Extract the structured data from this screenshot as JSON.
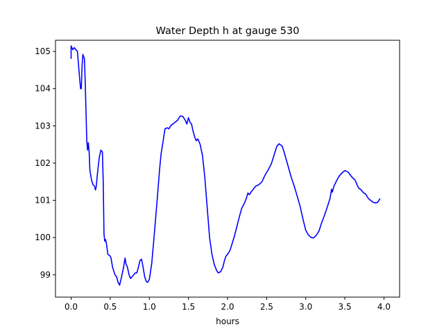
{
  "chart_data": {
    "type": "line",
    "title": "Water Depth h at gauge 530",
    "xlabel": "hours",
    "ylabel": "",
    "xlim": [
      -0.2,
      4.2
    ],
    "ylim": [
      98.4,
      105.3
    ],
    "xticks": [
      0.0,
      0.5,
      1.0,
      1.5,
      2.0,
      2.5,
      3.0,
      3.5,
      4.0
    ],
    "xtick_labels": [
      "0.0",
      "0.5",
      "1.0",
      "1.5",
      "2.0",
      "2.5",
      "3.0",
      "3.5",
      "4.0"
    ],
    "yticks": [
      99,
      100,
      101,
      102,
      103,
      104,
      105
    ],
    "ytick_labels": [
      "99",
      "100",
      "101",
      "102",
      "103",
      "104",
      "105"
    ],
    "grid": false,
    "series": [
      {
        "color": "#0000ff",
        "points": [
          [
            0.0,
            104.8
          ],
          [
            0.0,
            105.15
          ],
          [
            0.02,
            105.05
          ],
          [
            0.04,
            105.1
          ],
          [
            0.06,
            105.05
          ],
          [
            0.08,
            105.0
          ],
          [
            0.1,
            104.5
          ],
          [
            0.12,
            104.0
          ],
          [
            0.13,
            104.0
          ],
          [
            0.14,
            104.6
          ],
          [
            0.15,
            104.92
          ],
          [
            0.17,
            104.8
          ],
          [
            0.18,
            104.2
          ],
          [
            0.2,
            102.6
          ],
          [
            0.21,
            102.35
          ],
          [
            0.22,
            102.55
          ],
          [
            0.23,
            102.3
          ],
          [
            0.24,
            101.8
          ],
          [
            0.26,
            101.55
          ],
          [
            0.28,
            101.42
          ],
          [
            0.3,
            101.38
          ],
          [
            0.31,
            101.28
          ],
          [
            0.32,
            101.35
          ],
          [
            0.34,
            101.8
          ],
          [
            0.36,
            102.15
          ],
          [
            0.38,
            102.35
          ],
          [
            0.4,
            102.3
          ],
          [
            0.41,
            101.5
          ],
          [
            0.42,
            100.1
          ],
          [
            0.43,
            99.9
          ],
          [
            0.44,
            99.95
          ],
          [
            0.45,
            99.85
          ],
          [
            0.47,
            99.55
          ],
          [
            0.5,
            99.5
          ],
          [
            0.51,
            99.45
          ],
          [
            0.53,
            99.2
          ],
          [
            0.56,
            99.0
          ],
          [
            0.58,
            98.95
          ],
          [
            0.6,
            98.8
          ],
          [
            0.62,
            98.72
          ],
          [
            0.64,
            98.9
          ],
          [
            0.67,
            99.2
          ],
          [
            0.69,
            99.45
          ],
          [
            0.7,
            99.3
          ],
          [
            0.72,
            99.2
          ],
          [
            0.74,
            99.0
          ],
          [
            0.76,
            98.9
          ],
          [
            0.78,
            98.95
          ],
          [
            0.8,
            99.0
          ],
          [
            0.82,
            99.05
          ],
          [
            0.84,
            99.05
          ],
          [
            0.86,
            99.2
          ],
          [
            0.88,
            99.38
          ],
          [
            0.9,
            99.42
          ],
          [
            0.92,
            99.2
          ],
          [
            0.94,
            98.95
          ],
          [
            0.96,
            98.82
          ],
          [
            0.98,
            98.8
          ],
          [
            1.0,
            98.88
          ],
          [
            1.03,
            99.3
          ],
          [
            1.06,
            100.0
          ],
          [
            1.1,
            101.0
          ],
          [
            1.13,
            101.8
          ],
          [
            1.15,
            102.25
          ],
          [
            1.17,
            102.5
          ],
          [
            1.2,
            102.92
          ],
          [
            1.23,
            102.95
          ],
          [
            1.25,
            102.92
          ],
          [
            1.28,
            103.02
          ],
          [
            1.3,
            103.05
          ],
          [
            1.33,
            103.1
          ],
          [
            1.36,
            103.15
          ],
          [
            1.38,
            103.22
          ],
          [
            1.4,
            103.27
          ],
          [
            1.43,
            103.25
          ],
          [
            1.46,
            103.15
          ],
          [
            1.48,
            103.05
          ],
          [
            1.5,
            103.22
          ],
          [
            1.52,
            103.1
          ],
          [
            1.54,
            103.05
          ],
          [
            1.56,
            102.85
          ],
          [
            1.58,
            102.7
          ],
          [
            1.6,
            102.6
          ],
          [
            1.62,
            102.65
          ],
          [
            1.65,
            102.5
          ],
          [
            1.68,
            102.2
          ],
          [
            1.71,
            101.6
          ],
          [
            1.74,
            100.8
          ],
          [
            1.77,
            100.0
          ],
          [
            1.8,
            99.55
          ],
          [
            1.83,
            99.28
          ],
          [
            1.86,
            99.12
          ],
          [
            1.88,
            99.05
          ],
          [
            1.91,
            99.08
          ],
          [
            1.94,
            99.2
          ],
          [
            1.96,
            99.38
          ],
          [
            1.98,
            99.5
          ],
          [
            2.0,
            99.55
          ],
          [
            2.03,
            99.65
          ],
          [
            2.06,
            99.85
          ],
          [
            2.09,
            100.05
          ],
          [
            2.12,
            100.3
          ],
          [
            2.15,
            100.55
          ],
          [
            2.18,
            100.78
          ],
          [
            2.21,
            100.9
          ],
          [
            2.24,
            101.05
          ],
          [
            2.26,
            101.2
          ],
          [
            2.28,
            101.15
          ],
          [
            2.3,
            101.22
          ],
          [
            2.33,
            101.3
          ],
          [
            2.36,
            101.38
          ],
          [
            2.4,
            101.42
          ],
          [
            2.44,
            101.5
          ],
          [
            2.48,
            101.68
          ],
          [
            2.52,
            101.82
          ],
          [
            2.56,
            101.98
          ],
          [
            2.6,
            102.25
          ],
          [
            2.63,
            102.45
          ],
          [
            2.66,
            102.52
          ],
          [
            2.7,
            102.45
          ],
          [
            2.73,
            102.25
          ],
          [
            2.77,
            101.95
          ],
          [
            2.81,
            101.65
          ],
          [
            2.85,
            101.4
          ],
          [
            2.89,
            101.12
          ],
          [
            2.93,
            100.82
          ],
          [
            2.97,
            100.45
          ],
          [
            3.0,
            100.2
          ],
          [
            3.03,
            100.08
          ],
          [
            3.07,
            100.0
          ],
          [
            3.1,
            99.99
          ],
          [
            3.13,
            100.05
          ],
          [
            3.17,
            100.18
          ],
          [
            3.2,
            100.38
          ],
          [
            3.24,
            100.6
          ],
          [
            3.28,
            100.85
          ],
          [
            3.31,
            101.05
          ],
          [
            3.33,
            101.3
          ],
          [
            3.34,
            101.22
          ],
          [
            3.36,
            101.38
          ],
          [
            3.4,
            101.55
          ],
          [
            3.43,
            101.66
          ],
          [
            3.47,
            101.75
          ],
          [
            3.5,
            101.8
          ],
          [
            3.54,
            101.76
          ],
          [
            3.57,
            101.68
          ],
          [
            3.6,
            101.6
          ],
          [
            3.63,
            101.55
          ],
          [
            3.66,
            101.4
          ],
          [
            3.68,
            101.32
          ],
          [
            3.7,
            101.3
          ],
          [
            3.72,
            101.25
          ],
          [
            3.74,
            101.2
          ],
          [
            3.76,
            101.18
          ],
          [
            3.78,
            101.12
          ],
          [
            3.8,
            101.05
          ],
          [
            3.83,
            101.0
          ],
          [
            3.86,
            100.95
          ],
          [
            3.89,
            100.93
          ],
          [
            3.92,
            100.95
          ],
          [
            3.95,
            101.05
          ]
        ]
      }
    ]
  }
}
